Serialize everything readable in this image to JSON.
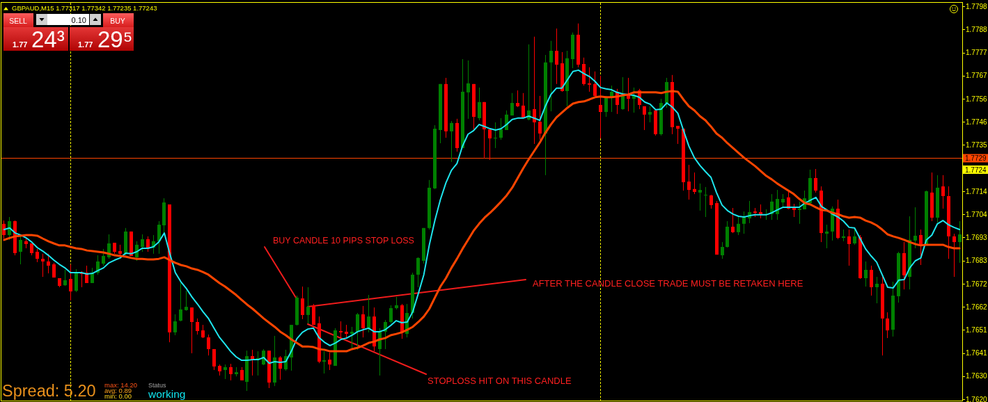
{
  "chart_data": {
    "type": "candlestick",
    "title": "GBPAUD,M15 1.77317 1.77342 1.77235 1.77243",
    "categories": [
      null,
      null,
      null,
      null,
      null,
      null,
      null,
      null,
      null,
      null,
      null,
      null,
      null,
      null,
      null,
      null,
      null,
      null,
      null,
      null,
      null,
      null,
      null,
      null,
      null,
      null,
      null,
      null,
      null,
      null,
      null,
      null,
      null,
      null,
      null,
      null,
      null,
      null,
      null,
      null,
      null,
      null,
      null,
      null,
      null,
      null,
      null,
      null,
      null,
      null,
      null,
      null,
      null,
      null,
      null,
      null,
      null,
      null,
      null,
      null,
      null,
      null,
      null,
      null,
      null,
      null,
      null,
      null,
      null,
      null,
      null,
      null,
      null,
      null,
      null,
      null,
      null,
      null,
      null,
      null,
      null,
      null,
      null,
      null,
      null,
      null,
      null,
      null,
      null,
      null,
      null,
      null,
      null,
      null,
      null,
      null,
      null,
      null,
      null,
      null,
      null,
      null,
      null,
      null,
      null,
      null,
      null,
      null,
      null,
      null,
      null,
      null,
      null,
      null,
      null,
      null,
      null,
      null,
      null,
      null,
      null,
      null,
      null,
      null,
      null,
      null,
      null,
      null,
      null,
      null,
      null,
      null,
      null,
      null,
      null,
      null,
      null,
      null,
      null,
      null,
      null,
      null,
      null,
      null,
      null,
      null,
      null,
      null,
      null,
      null,
      null,
      null,
      null,
      null,
      null,
      null,
      null,
      null,
      null,
      null,
      null,
      null,
      null,
      null,
      null,
      null,
      null,
      null,
      null,
      null,
      null,
      null,
      null,
      null
    ],
    "ohlc": [
      [
        1.76997,
        1.77012,
        1.7693,
        1.76946
      ],
      [
        1.76946,
        1.77028,
        1.76924,
        1.77009
      ],
      [
        1.77009,
        1.77012,
        1.76854,
        1.76864
      ],
      [
        1.7687,
        1.76946,
        1.76813,
        1.76924
      ],
      [
        1.76918,
        1.76933,
        1.76886,
        1.76905
      ],
      [
        1.76908,
        1.76908,
        1.76854,
        1.76864
      ],
      [
        1.7687,
        1.76883,
        1.76823,
        1.76838
      ],
      [
        1.76838,
        1.76861,
        1.76756,
        1.76826
      ],
      [
        1.76826,
        1.76861,
        1.76772,
        1.76807
      ],
      [
        1.76813,
        1.7682,
        1.76753,
        1.76753
      ],
      [
        1.7675,
        1.7675,
        1.76709,
        1.76715
      ],
      [
        1.76718,
        1.76788,
        1.76715,
        1.76741
      ],
      [
        1.76747,
        1.76813,
        1.76649,
        1.7669
      ],
      [
        1.76693,
        1.76791,
        1.76687,
        1.76775
      ],
      [
        1.76775,
        1.76782,
        1.76709,
        1.76769
      ],
      [
        1.76775,
        1.76807,
        1.76728,
        1.76728
      ],
      [
        1.76728,
        1.76797,
        1.76728,
        1.76772
      ],
      [
        1.76775,
        1.76854,
        1.76766,
        1.76826
      ],
      [
        1.76816,
        1.76883,
        1.76807,
        1.76851
      ],
      [
        1.76845,
        1.76949,
        1.76838,
        1.76908
      ],
      [
        1.76911,
        1.76911,
        1.76861,
        1.7687
      ],
      [
        1.76873,
        1.76902,
        1.76851,
        1.76861
      ],
      [
        1.76861,
        1.76978,
        1.76854,
        1.76962
      ],
      [
        1.76962,
        1.76962,
        1.76851,
        1.76851
      ],
      [
        1.76845,
        1.76918,
        1.76829,
        1.76902
      ],
      [
        1.76892,
        1.76949,
        1.7687,
        1.76927
      ],
      [
        1.76927,
        1.7694,
        1.7687,
        1.76883
      ],
      [
        1.76889,
        1.76946,
        1.76861,
        1.76918
      ],
      [
        1.76918,
        1.77009,
        1.76861,
        1.76993
      ],
      [
        1.7699,
        1.77113,
        1.76955,
        1.77094
      ],
      [
        1.77085,
        1.77085,
        1.76459,
        1.76504
      ],
      [
        1.76504,
        1.76586,
        1.76491,
        1.76554
      ],
      [
        1.76557,
        1.76728,
        1.76554,
        1.76608
      ],
      [
        1.76605,
        1.76693,
        1.76602,
        1.7662
      ],
      [
        1.76617,
        1.76617,
        1.76409,
        1.76551
      ],
      [
        1.76551,
        1.76567,
        1.76494,
        1.7651
      ],
      [
        1.76513,
        1.76538,
        1.76478,
        1.76481
      ],
      [
        1.76481,
        1.76494,
        1.76399,
        1.76428
      ],
      [
        1.76428,
        1.76428,
        1.76333,
        1.76349
      ],
      [
        1.76352,
        1.76358,
        1.76308,
        1.76327
      ],
      [
        1.76333,
        1.76358,
        1.76292,
        1.76346
      ],
      [
        1.76346,
        1.76361,
        1.76286,
        1.76314
      ],
      [
        1.76314,
        1.76346,
        1.76304,
        1.76323
      ],
      [
        1.76333,
        1.76346,
        1.76286,
        1.76286
      ],
      [
        1.76279,
        1.76421,
        1.76238,
        1.76396
      ],
      [
        1.76396,
        1.76425,
        1.76308,
        1.7638
      ],
      [
        1.7638,
        1.76418,
        1.76308,
        1.76387
      ],
      [
        1.76358,
        1.76428,
        1.76355,
        1.76421
      ],
      [
        1.76421,
        1.76421,
        1.76251,
        1.76276
      ],
      [
        1.76276,
        1.76488,
        1.7626,
        1.7639
      ],
      [
        1.7639,
        1.76396,
        1.76289,
        1.76339
      ],
      [
        1.76336,
        1.76425,
        1.7633,
        1.76396
      ],
      [
        1.7639,
        1.76538,
        1.7633,
        1.76538
      ],
      [
        1.76538,
        1.76671,
        1.76535,
        1.76662
      ],
      [
        1.76658,
        1.76712,
        1.76564,
        1.76583
      ],
      [
        1.76583,
        1.76709,
        1.76545,
        1.7662
      ],
      [
        1.76624,
        1.76633,
        1.76538,
        1.76538
      ],
      [
        1.76545,
        1.76576,
        1.76364,
        1.76371
      ],
      [
        1.76371,
        1.76418,
        1.76317,
        1.76377
      ],
      [
        1.7638,
        1.76412,
        1.76333,
        1.76358
      ],
      [
        1.76352,
        1.76523,
        1.76352,
        1.76513
      ],
      [
        1.7651,
        1.76554,
        1.76472,
        1.76504
      ],
      [
        1.76507,
        1.76538,
        1.76475,
        1.76497
      ],
      [
        1.76497,
        1.76529,
        1.76425,
        1.76507
      ],
      [
        1.76507,
        1.76592,
        1.76425,
        1.76586
      ],
      [
        1.76586,
        1.76624,
        1.76481,
        1.76523
      ],
      [
        1.76523,
        1.76674,
        1.76504,
        1.76576
      ],
      [
        1.76576,
        1.76617,
        1.76418,
        1.7644
      ],
      [
        1.76428,
        1.76523,
        1.76308,
        1.76507
      ],
      [
        1.76507,
        1.7656,
        1.76428,
        1.76551
      ],
      [
        1.76551,
        1.76627,
        1.76545,
        1.76614
      ],
      [
        1.76614,
        1.76665,
        1.76608,
        1.76627
      ],
      [
        1.76627,
        1.76633,
        1.76475,
        1.76504
      ],
      [
        1.76497,
        1.76633,
        1.76481,
        1.76592
      ],
      [
        1.76592,
        1.76775,
        1.76567,
        1.76766
      ],
      [
        1.76766,
        1.76845,
        1.76709,
        1.76842
      ],
      [
        1.76829,
        1.76978,
        1.76816,
        1.76978
      ],
      [
        1.76978,
        1.77196,
        1.76971,
        1.77161
      ],
      [
        1.77158,
        1.77445,
        1.77155,
        1.77429
      ],
      [
        1.77423,
        1.77632,
        1.77363,
        1.77632
      ],
      [
        1.77632,
        1.7766,
        1.77388,
        1.77417
      ],
      [
        1.77417,
        1.77464,
        1.77278,
        1.77455
      ],
      [
        1.77455,
        1.77474,
        1.77325,
        1.77341
      ],
      [
        1.77341,
        1.77745,
        1.77341,
        1.77597
      ],
      [
        1.77594,
        1.77739,
        1.77474,
        1.77635
      ],
      [
        1.77632,
        1.77632,
        1.77423,
        1.77483
      ],
      [
        1.77477,
        1.77616,
        1.77467,
        1.7755
      ],
      [
        1.7755,
        1.7755,
        1.77294,
        1.77426
      ],
      [
        1.77426,
        1.77426,
        1.77287,
        1.77385
      ],
      [
        1.77385,
        1.77458,
        1.77341,
        1.77388
      ],
      [
        1.77388,
        1.77477,
        1.77379,
        1.77426
      ],
      [
        1.77423,
        1.77512,
        1.77423,
        1.77493
      ],
      [
        1.77489,
        1.77591,
        1.77489,
        1.77546
      ],
      [
        1.77546,
        1.77603,
        1.77527,
        1.77531
      ],
      [
        1.77534,
        1.77591,
        1.7748,
        1.7748
      ],
      [
        1.77471,
        1.77812,
        1.77467,
        1.77512
      ],
      [
        1.77518,
        1.77847,
        1.7736,
        1.77458
      ],
      [
        1.77461,
        1.77578,
        1.77379,
        1.77407
      ],
      [
        1.77407,
        1.77764,
        1.77218,
        1.7773
      ],
      [
        1.7773,
        1.77828,
        1.77508,
        1.77783
      ],
      [
        1.77783,
        1.77884,
        1.77632,
        1.7772
      ],
      [
        1.77726,
        1.77777,
        1.77597,
        1.776
      ],
      [
        1.776,
        1.77783,
        1.77531,
        1.77749
      ],
      [
        1.77745,
        1.77866,
        1.77704,
        1.77856
      ],
      [
        1.77856,
        1.77907,
        1.77708,
        1.7772
      ],
      [
        1.77723,
        1.77752,
        1.77625,
        1.77632
      ],
      [
        1.77635,
        1.77708,
        1.77597,
        1.77629
      ],
      [
        1.77632,
        1.77689,
        1.77578,
        1.77578
      ],
      [
        1.77537,
        1.7767,
        1.77385,
        1.77505
      ],
      [
        1.77505,
        1.77578,
        1.77483,
        1.77572
      ],
      [
        1.77572,
        1.77625,
        1.77505,
        1.77597
      ],
      [
        1.77597,
        1.7761,
        1.77496,
        1.77537
      ],
      [
        1.77518,
        1.77663,
        1.77515,
        1.77581
      ],
      [
        1.77587,
        1.7766,
        1.77508,
        1.77565
      ],
      [
        1.77565,
        1.77616,
        1.77502,
        1.77581
      ],
      [
        1.77603,
        1.7761,
        1.77518,
        1.77537
      ],
      [
        1.77531,
        1.77531,
        1.77423,
        1.77493
      ],
      [
        1.77493,
        1.77531,
        1.77458,
        1.77505
      ],
      [
        1.77512,
        1.77518,
        1.77398,
        1.77404
      ],
      [
        1.77404,
        1.77565,
        1.77398,
        1.77546
      ],
      [
        1.77546,
        1.7766,
        1.77524,
        1.77641
      ],
      [
        1.77641,
        1.77673,
        1.77404,
        1.77436
      ],
      [
        1.77442,
        1.77442,
        1.7736,
        1.77429
      ],
      [
        1.77429,
        1.77429,
        1.77148,
        1.77186
      ],
      [
        1.77189,
        1.77265,
        1.77107,
        1.77151
      ],
      [
        1.77155,
        1.7723,
        1.77132,
        1.77142
      ],
      [
        1.77139,
        1.7718,
        1.77057,
        1.77151
      ],
      [
        1.77126,
        1.77164,
        1.77028,
        1.77129
      ],
      [
        1.77126,
        1.77129,
        1.77066,
        1.77082
      ],
      [
        1.77091,
        1.77101,
        1.76857,
        1.76857
      ],
      [
        1.76854,
        1.76914,
        1.76838,
        1.76892
      ],
      [
        1.76892,
        1.77009,
        1.76889,
        1.76984
      ],
      [
        1.76984,
        1.77069,
        1.76955,
        1.76959
      ],
      [
        1.76959,
        1.77034,
        1.76946,
        1.76997
      ],
      [
        1.76997,
        1.77053,
        1.76952,
        1.77028
      ],
      [
        1.77022,
        1.77101,
        1.77,
        1.7705
      ],
      [
        1.77053,
        1.77069,
        1.77028,
        1.77047
      ],
      [
        1.7705,
        1.77085,
        1.77022,
        1.77038
      ],
      [
        1.77038,
        1.77063,
        1.77015,
        1.77041
      ],
      [
        1.77041,
        1.77132,
        1.77015,
        1.77098
      ],
      [
        1.77041,
        1.77151,
        1.77015,
        1.7711
      ],
      [
        1.77094,
        1.77132,
        1.77072,
        1.7711
      ],
      [
        1.77117,
        1.77142,
        1.77063,
        1.77066
      ],
      [
        1.77072,
        1.77088,
        1.77028,
        1.7706
      ],
      [
        1.7706,
        1.77098,
        1.76997,
        1.77066
      ],
      [
        1.77063,
        1.77148,
        1.77063,
        1.77113
      ],
      [
        1.77091,
        1.77243,
        1.77082,
        1.77205
      ],
      [
        1.77205,
        1.77246,
        1.77139,
        1.77148
      ],
      [
        1.77148,
        1.77167,
        1.76914,
        1.76955
      ],
      [
        1.76952,
        1.76993,
        1.76886,
        1.76962
      ],
      [
        1.76962,
        1.77076,
        1.76921,
        1.77066
      ],
      [
        1.77066,
        1.77107,
        1.76927,
        1.76933
      ],
      [
        1.76933,
        1.76971,
        1.76918,
        1.7694
      ],
      [
        1.7694,
        1.76971,
        1.76807,
        1.76905
      ],
      [
        1.76908,
        1.76971,
        1.76902,
        1.7694
      ],
      [
        1.76936,
        1.76946,
        1.76747,
        1.7675
      ],
      [
        1.7675,
        1.76826,
        1.76712,
        1.76788
      ],
      [
        1.76788,
        1.76807,
        1.76671,
        1.76709
      ],
      [
        1.76709,
        1.76756,
        1.76636,
        1.76725
      ],
      [
        1.76725,
        1.76756,
        1.76399,
        1.76567
      ],
      [
        1.76567,
        1.76595,
        1.76478,
        1.76513
      ],
      [
        1.76516,
        1.76734,
        1.76485,
        1.76671
      ],
      [
        1.76668,
        1.7687,
        1.76639,
        1.76864
      ],
      [
        1.76864,
        1.76914,
        1.76699,
        1.76763
      ],
      [
        1.76756,
        1.77031,
        1.76699,
        1.76924
      ],
      [
        1.76921,
        1.77072,
        1.76886,
        1.76943
      ],
      [
        1.76946,
        1.76971,
        1.7681,
        1.76902
      ],
      [
        1.76902,
        1.77148,
        1.76899,
        1.77145
      ],
      [
        1.77139,
        1.7723,
        1.77009,
        1.77025
      ],
      [
        1.77025,
        1.77218,
        1.77003,
        1.77161
      ],
      [
        1.77167,
        1.77218,
        1.77066,
        1.77123
      ],
      [
        1.77123,
        1.77167,
        1.76838,
        1.7694
      ],
      [
        1.7694,
        1.76952,
        1.76756,
        1.76914
      ],
      [
        1.76914,
        1.77009,
        1.7682,
        1.76949
      ]
    ],
    "colors": [
      "#ff0000",
      "#008000",
      "#ff0000",
      "#008000",
      "#ff0000",
      "#ff0000",
      "#ff0000",
      "#ff0000",
      "#ff0000",
      "#ff0000",
      "#ff0000",
      "#008000",
      "#ff0000",
      "#008000",
      "#ff0000",
      "#ff0000",
      "#008000",
      "#008000",
      "#008000",
      "#008000",
      "#ff0000",
      "#ff0000",
      "#008000",
      "#ff0000",
      "#008000",
      "#008000",
      "#ff0000",
      "#008000",
      "#008000",
      "#008000",
      "#ff0000",
      "#008000",
      "#008000",
      "#008000",
      "#ff0000",
      "#ff0000",
      "#ff0000",
      "#ff0000",
      "#ff0000",
      "#ff0000",
      "#008000",
      "#ff0000",
      "#008000",
      "#ff0000",
      "#008000",
      "#ff0000",
      "#008000",
      "#008000",
      "#ff0000",
      "#008000",
      "#ff0000",
      "#008000",
      "#008000",
      "#008000",
      "#ff0000",
      "#008000",
      "#ff0000",
      "#ff0000",
      "#008000",
      "#ff0000",
      "#008000",
      "#ff0000",
      "#ff0000",
      "#008000",
      "#008000",
      "#ff0000",
      "#008000",
      "#ff0000",
      "#008000",
      "#008000",
      "#008000",
      "#008000",
      "#ff0000",
      "#008000",
      "#008000",
      "#008000",
      "#008000",
      "#008000",
      "#008000",
      "#008000",
      "#ff0000",
      "#008000",
      "#ff0000",
      "#008000",
      "#008000",
      "#ff0000",
      "#008000",
      "#ff0000",
      "#ff0000",
      "#008000",
      "#008000",
      "#008000",
      "#008000",
      "#ff0000",
      "#ff0000",
      "#008000",
      "#ff0000",
      "#ff0000",
      "#008000",
      "#008000",
      "#ff0000",
      "#ff0000",
      "#008000",
      "#008000",
      "#ff0000",
      "#ff0000",
      "#ff0000",
      "#ff0000",
      "#ff0000",
      "#008000",
      "#008000",
      "#ff0000",
      "#008000",
      "#ff0000",
      "#008000",
      "#ff0000",
      "#ff0000",
      "#008000",
      "#ff0000",
      "#008000",
      "#008000",
      "#ff0000",
      "#ff0000",
      "#ff0000",
      "#ff0000",
      "#ff0000",
      "#008000",
      "#008000",
      "#ff0000",
      "#ff0000",
      "#008000",
      "#008000",
      "#ff0000",
      "#008000",
      "#008000",
      "#008000",
      "#ff0000",
      "#ff0000",
      "#008000",
      "#008000",
      "#008000",
      "#008000",
      "#ff0000",
      "#ff0000",
      "#008000",
      "#008000",
      "#008000",
      "#ff0000",
      "#ff0000",
      "#008000",
      "#008000",
      "#ff0000",
      "#008000",
      "#ff0000",
      "#008000",
      "#ff0000",
      "#008000",
      "#ff0000",
      "#008000",
      "#ff0000",
      "#ff0000",
      "#008000",
      "#008000",
      "#ff0000",
      "#008000",
      "#008000",
      "#ff0000",
      "#008000",
      "#ff0000",
      "#008000",
      "#ff0000",
      "#ff0000",
      "#ff0000",
      "#008000"
    ],
    "series": [
      {
        "type": "line",
        "color": "#1ee6ee",
        "values": [
          1.76971,
          1.76978,
          1.76955,
          1.76946,
          1.76933,
          1.76914,
          1.76889,
          1.76873,
          1.76854,
          1.76832,
          1.76813,
          1.76797,
          1.76775,
          1.76775,
          1.76775,
          1.76769,
          1.76772,
          1.76785,
          1.76797,
          1.7682,
          1.76832,
          1.76842,
          1.76864,
          1.76861,
          1.7687,
          1.76886,
          1.76886,
          1.76892,
          1.76914,
          1.76955,
          1.76861,
          1.76775,
          1.76734,
          1.76703,
          1.76665,
          1.76633,
          1.76598,
          1.76567,
          1.76523,
          1.76481,
          1.7645,
          1.76418,
          1.76393,
          1.76377,
          1.76377,
          1.7638,
          1.7638,
          1.7639,
          1.76364,
          1.76371,
          1.76368,
          1.76371,
          1.76418,
          1.76475,
          1.76504,
          1.76519,
          1.76523,
          1.76481,
          1.76459,
          1.76444,
          1.76456,
          1.76472,
          1.76478,
          1.76491,
          1.76507,
          1.76516,
          1.76523,
          1.76507,
          1.76507,
          1.76516,
          1.76535,
          1.76557,
          1.76548,
          1.76551,
          1.76598,
          1.7668,
          1.76766,
          1.76902,
          1.77012,
          1.77107,
          1.77183,
          1.7724,
          1.77271,
          1.7735,
          1.77404,
          1.7742,
          1.77448,
          1.77439,
          1.77429,
          1.77423,
          1.77429,
          1.77448,
          1.77471,
          1.77477,
          1.77477,
          1.77486,
          1.77477,
          1.77467,
          1.77531,
          1.77584,
          1.77613,
          1.77613,
          1.77651,
          1.77689,
          1.77695,
          1.77679,
          1.77666,
          1.77644,
          1.77616,
          1.7761,
          1.77606,
          1.77594,
          1.77587,
          1.77584,
          1.77581,
          1.77572,
          1.7755,
          1.7754,
          1.77515,
          1.77518,
          1.77546,
          1.77527,
          1.77499,
          1.77423,
          1.7735,
          1.77297,
          1.77262,
          1.77234,
          1.77208,
          1.77139,
          1.77082,
          1.77057,
          1.77041,
          1.77031,
          1.77028,
          1.77034,
          1.77038,
          1.77038,
          1.77038,
          1.77047,
          1.7706,
          1.77072,
          1.77072,
          1.77072,
          1.77072,
          1.77091,
          1.77104,
          1.77117,
          1.77076,
          1.7706,
          1.77041,
          1.77028,
          1.77009,
          1.76981,
          1.76978,
          1.7693,
          1.76883,
          1.76851,
          1.76823,
          1.76766,
          1.76709,
          1.76706,
          1.76741,
          1.76744,
          1.76797,
          1.76829,
          1.76842,
          1.76924,
          1.76946,
          1.76997,
          1.77012,
          1.76993,
          1.76981,
          1.76971
        ]
      },
      {
        "type": "line",
        "color": "#ff4500",
        "values": [
          1.76924,
          1.76933,
          1.7694,
          1.76943,
          1.76946,
          1.76946,
          1.76943,
          1.7693,
          1.76918,
          1.76908,
          1.76899,
          1.76899,
          1.76892,
          1.76886,
          1.76883,
          1.76876,
          1.76873,
          1.7687,
          1.76867,
          1.76861,
          1.76854,
          1.76851,
          1.76848,
          1.76842,
          1.76838,
          1.76838,
          1.76835,
          1.76835,
          1.76838,
          1.76845,
          1.76832,
          1.7682,
          1.7681,
          1.76804,
          1.76794,
          1.76788,
          1.76778,
          1.76766,
          1.76747,
          1.76728,
          1.76712,
          1.76693,
          1.76674,
          1.76652,
          1.7663,
          1.76611,
          1.76589,
          1.76567,
          1.76548,
          1.76529,
          1.76507,
          1.76491,
          1.76472,
          1.76456,
          1.7644,
          1.7644,
          1.76437,
          1.76428,
          1.76425,
          1.76418,
          1.76418,
          1.76418,
          1.76418,
          1.76428,
          1.76434,
          1.76444,
          1.76456,
          1.76462,
          1.76472,
          1.76478,
          1.76491,
          1.76497,
          1.76504,
          1.76516,
          1.76529,
          1.76551,
          1.76576,
          1.76611,
          1.76662,
          1.76712,
          1.7675,
          1.76797,
          1.76838,
          1.76883,
          1.76924,
          1.76965,
          1.76997,
          1.77025,
          1.77047,
          1.77072,
          1.77098,
          1.77126,
          1.77161,
          1.77205,
          1.77249,
          1.7729,
          1.77328,
          1.77366,
          1.7741,
          1.77448,
          1.7748,
          1.77502,
          1.77524,
          1.77543,
          1.7755,
          1.77553,
          1.77562,
          1.77572,
          1.77575,
          1.77572,
          1.77572,
          1.77575,
          1.77581,
          1.77584,
          1.77594,
          1.77594,
          1.77594,
          1.77594,
          1.77594,
          1.77591,
          1.77597,
          1.776,
          1.77597,
          1.77562,
          1.77531,
          1.77512,
          1.77486,
          1.77467,
          1.77439,
          1.77407,
          1.77388,
          1.77363,
          1.77341,
          1.77319,
          1.77297,
          1.77278,
          1.77259,
          1.77237,
          1.77215,
          1.77199,
          1.7718,
          1.77164,
          1.77148,
          1.77132,
          1.7711,
          1.77091,
          1.77085,
          1.77072,
          1.7706,
          1.77057,
          1.77047,
          1.77041,
          1.77031,
          1.77025,
          1.77028,
          1.77025,
          1.77012,
          1.77003,
          1.7699,
          1.76971,
          1.76949,
          1.7694,
          1.76933,
          1.76924,
          1.76914,
          1.76905,
          1.76899,
          1.76902,
          1.76902,
          1.76902,
          1.76902,
          1.76892,
          1.76886,
          1.76886
        ]
      }
    ],
    "ylim": [
      1.76194,
      1.78001
    ],
    "yticks": [
      {
        "value": 1.762,
        "label": "1.7620"
      },
      {
        "value": 1.76305,
        "label": "1.7630"
      },
      {
        "value": 1.7641,
        "label": "1.7641"
      },
      {
        "value": 1.76515,
        "label": "1.7651"
      },
      {
        "value": 1.7662,
        "label": "1.7662"
      },
      {
        "value": 1.76725,
        "label": "1.7672"
      },
      {
        "value": 1.7683,
        "label": "1.7683"
      },
      {
        "value": 1.76935,
        "label": "1.7693"
      },
      {
        "value": 1.7704,
        "label": "1.7704"
      },
      {
        "value": 1.77145,
        "label": "1.7714"
      },
      {
        "value": 1.77355,
        "label": "1.7735"
      },
      {
        "value": 1.7746,
        "label": "1.7746"
      },
      {
        "value": 1.77565,
        "label": "1.7756"
      },
      {
        "value": 1.7767,
        "label": "1.7767"
      },
      {
        "value": 1.77775,
        "label": "1.7777"
      },
      {
        "value": 1.7788,
        "label": "1.7788"
      },
      {
        "value": 1.77985,
        "label": "1.7798"
      }
    ],
    "tick_labels": "y",
    "ref_lines": [
      {
        "axis": "y",
        "value": 1.77295,
        "label": "1.7729",
        "color": "#ff4500"
      }
    ],
    "annotations": [
      "BUY CANDLE 10 PIPS STOP LOSS",
      "AFTER THE CANDLE CLOSE TRADE MUST BE RETAKEN HERE",
      "STOPLOSS HIT ON THIS CANDLE",
      "Spread: 5.20",
      "max: 14.20",
      "avg: 0.89",
      "min: 0.00",
      "Status",
      "working",
      "SELL",
      "0.10",
      "BUY",
      "1.77",
      "24³",
      "1.77",
      "29⁵",
      {
        "text": "1.7724",
        "y": 1.77243
      }
    ]
  }
}
